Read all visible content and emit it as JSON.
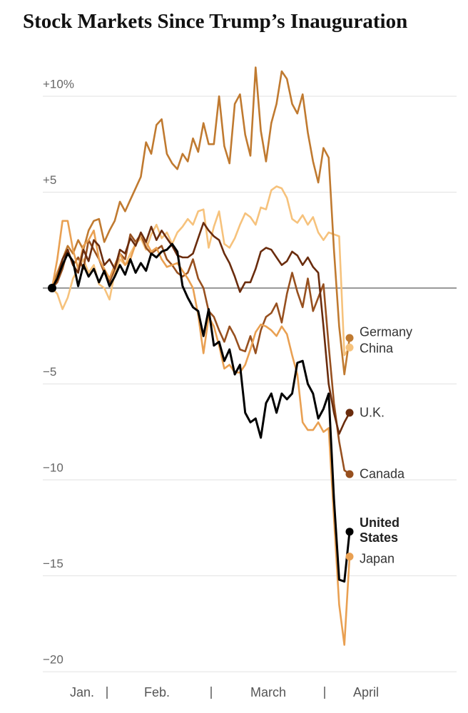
{
  "chart_data": {
    "type": "line",
    "title": "Stock Markets Since Trump’s Inauguration",
    "month_labels": [
      "Jan.",
      "Feb.",
      "March",
      "April"
    ],
    "ylim": [
      -21,
      11.5
    ],
    "yticks": [
      {
        "value": 10,
        "label": "+10%"
      },
      {
        "value": 5,
        "label": "+5"
      },
      {
        "value": -5,
        "label": "−5"
      },
      {
        "value": -10,
        "label": "−10"
      },
      {
        "value": -15,
        "label": "−15"
      },
      {
        "value": -20,
        "label": "−20"
      }
    ],
    "grid": true,
    "zero_line": true,
    "series": [
      {
        "name": "China",
        "color": "#f6c27c",
        "values": [
          0,
          -0.3,
          -1.1,
          -0.5,
          0.5,
          1,
          1.5,
          0.8,
          1.2,
          0.2,
          0,
          -0.6,
          0.8,
          1.5,
          1.2,
          1.8,
          2.3,
          2.6,
          2,
          2.8,
          3.3,
          2.6,
          2.9,
          2.3,
          2.9,
          3.2,
          3.6,
          3.3,
          4,
          4.1,
          2.1,
          3.2,
          4,
          2.3,
          2.1,
          2.6,
          3.3,
          3.9,
          3.7,
          3.3,
          4.2,
          4.1,
          5.1,
          5.3,
          5.2,
          4.7,
          3.6,
          3.4,
          3.8,
          3.3,
          3.7,
          2.9,
          2.5,
          2.9,
          2.8,
          2.7,
          -3.5,
          -3.1
        ]
      },
      {
        "name": "Germany",
        "color": "#c07a30",
        "values": [
          0,
          0.8,
          1.5,
          2.2,
          1.8,
          2.5,
          2,
          3,
          3.5,
          3.6,
          2.4,
          3,
          3.5,
          4.5,
          4,
          4.6,
          5.2,
          5.8,
          7.6,
          7,
          8.5,
          8.8,
          7,
          6.5,
          6.2,
          7,
          6.6,
          7.8,
          7.1,
          8.6,
          7.5,
          7.5,
          10,
          7.4,
          6.5,
          9.6,
          10.1,
          8,
          6.9,
          11.5,
          8.2,
          6.6,
          8.6,
          9.6,
          11.3,
          10.9,
          9.6,
          9.1,
          10.1,
          8.1,
          6.6,
          5.5,
          7.3,
          6.8,
          2,
          -2,
          -4.5,
          -2.6
        ]
      },
      {
        "name": "Canada",
        "color": "#97501f",
        "values": [
          0,
          0.3,
          1,
          2,
          1.2,
          1.6,
          1,
          2.5,
          2,
          1.5,
          0.8,
          0.3,
          1,
          1.8,
          1.5,
          2.8,
          2.4,
          2.8,
          2.1,
          1.8,
          2,
          2.2,
          1.5,
          1.2,
          0.8,
          0.6,
          0.8,
          1.5,
          0.5,
          0,
          -1.2,
          -1.5,
          -2.2,
          -2.8,
          -2,
          -2.5,
          -3.2,
          -3.3,
          -2.5,
          -3.4,
          -2.2,
          -1.5,
          -1.3,
          -0.8,
          -1.8,
          -0.3,
          0.8,
          -0.2,
          -1,
          0.5,
          -1.2,
          -0.5,
          0.2,
          -3,
          -6,
          -8,
          -9.5,
          -9.7
        ]
      },
      {
        "name": "Japan",
        "color": "#e9a052",
        "values": [
          0,
          1.5,
          3.5,
          3.5,
          2,
          1,
          2.2,
          2.5,
          3,
          1.5,
          1,
          0.5,
          1.2,
          1.8,
          1.2,
          1.5,
          2.3,
          2.8,
          2.4,
          1.9,
          2.1,
          1.5,
          1.1,
          1.2,
          1.3,
          0.9,
          0.5,
          0,
          -1.4,
          -3.4,
          -1.5,
          -2,
          -3,
          -4.2,
          -4,
          -4.4,
          -4.4,
          -4,
          -3.2,
          -2.3,
          -1.9,
          -2,
          -2.2,
          -2.5,
          -2,
          -2.4,
          -3.5,
          -4.5,
          -7,
          -7.4,
          -7.4,
          -7,
          -7.5,
          -7.3,
          -12,
          -16.5,
          -18.6,
          -14
        ]
      },
      {
        "name": "U.K.",
        "color": "#6a2c0d",
        "values": [
          0,
          0.5,
          1.5,
          2,
          1.2,
          0.8,
          2,
          1.4,
          2.5,
          2.2,
          1.2,
          1.5,
          1,
          2,
          1.8,
          2.6,
          2.2,
          2.9,
          2.4,
          3.2,
          2.5,
          3,
          2.6,
          2.2,
          1.7,
          1.6,
          1.6,
          1.8,
          2.6,
          3.4,
          3,
          2.7,
          2.5,
          1.8,
          1.3,
          0.6,
          -0.2,
          0.3,
          0.3,
          1,
          1.9,
          2.1,
          2,
          1.6,
          1.2,
          1.4,
          1.9,
          1.7,
          1.2,
          1.6,
          1.1,
          0.8,
          -2,
          -5,
          -6.5,
          -7.6,
          -7,
          -6.5
        ]
      },
      {
        "name": "United States",
        "color": "#000000",
        "values": [
          0,
          0.5,
          1.2,
          1.8,
          1.4,
          0.1,
          1.2,
          0.6,
          1,
          0.3,
          0.9,
          0.1,
          0.6,
          1.2,
          0.7,
          1.5,
          0.8,
          1.3,
          0.9,
          1.8,
          1.6,
          1.9,
          2,
          2.3,
          1.9,
          0.1,
          -0.5,
          -1,
          -1.2,
          -2.5,
          -1.1,
          -3,
          -2.8,
          -3.8,
          -3.2,
          -4.5,
          -4,
          -6.5,
          -7,
          -6.8,
          -7.8,
          -6,
          -5.5,
          -6.5,
          -5.5,
          -5.8,
          -5.5,
          -3.9,
          -3.8,
          -5,
          -5.5,
          -6.8,
          -6.3,
          -5.5,
          -11,
          -15.2,
          -15.3,
          -12.7
        ]
      }
    ]
  }
}
